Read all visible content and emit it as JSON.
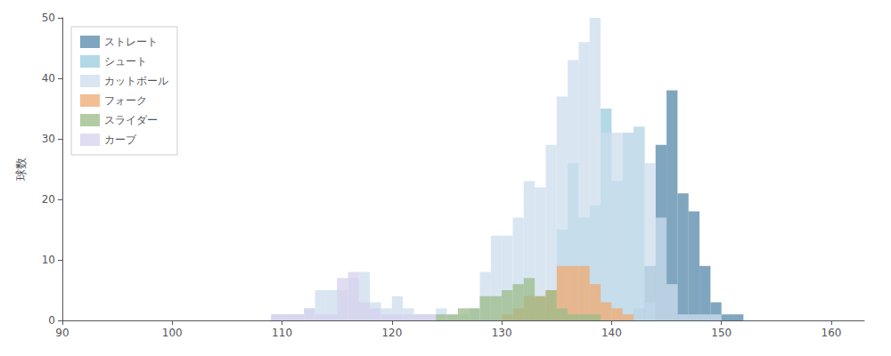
{
  "chart_data": {
    "type": "histogram",
    "ylabel": "球数",
    "bins": [
      90,
      91,
      92,
      93,
      94,
      95,
      96,
      97,
      98,
      99,
      100,
      101,
      102,
      103,
      104,
      105,
      106,
      107,
      108,
      109,
      110,
      111,
      112,
      113,
      114,
      115,
      116,
      117,
      118,
      119,
      120,
      121,
      122,
      123,
      124,
      125,
      126,
      127,
      128,
      129,
      130,
      131,
      132,
      133,
      134,
      135,
      136,
      137,
      138,
      139,
      140,
      141,
      142,
      143,
      144,
      145,
      146,
      147,
      148,
      149,
      150,
      151,
      152,
      153,
      154,
      155,
      156,
      157,
      158,
      159,
      160,
      161,
      162,
      163
    ],
    "series": [
      {
        "name": "ストレート",
        "color": "#5588aa",
        "values": [
          0,
          0,
          0,
          0,
          0,
          0,
          0,
          0,
          0,
          0,
          0,
          0,
          0,
          0,
          0,
          0,
          0,
          0,
          0,
          0,
          0,
          0,
          0,
          0,
          0,
          0,
          0,
          0,
          0,
          0,
          0,
          0,
          0,
          0,
          0,
          0,
          0,
          0,
          0,
          0,
          0,
          0,
          0,
          0,
          0,
          0,
          0,
          0,
          0,
          0,
          0,
          0,
          2,
          9,
          29,
          38,
          21,
          18,
          9,
          3,
          1,
          1,
          0,
          0,
          0,
          0,
          0,
          0,
          0,
          0,
          0,
          0,
          0
        ]
      },
      {
        "name": "シュート",
        "color": "#99ccdd",
        "values": [
          0,
          0,
          0,
          0,
          0,
          0,
          0,
          0,
          0,
          0,
          0,
          0,
          0,
          0,
          0,
          0,
          0,
          0,
          0,
          0,
          0,
          0,
          0,
          0,
          0,
          0,
          0,
          0,
          0,
          0,
          0,
          0,
          0,
          0,
          0,
          0,
          0,
          0,
          0,
          0,
          0,
          0,
          0,
          0,
          2,
          15,
          26,
          17,
          19,
          35,
          23,
          31,
          32,
          3,
          0,
          0,
          0,
          0,
          0,
          0,
          0,
          0,
          0,
          0,
          0,
          0,
          0,
          0,
          0,
          0,
          0,
          0,
          0
        ]
      },
      {
        "name": "カットボール",
        "color": "#ccdded",
        "values": [
          0,
          0,
          0,
          0,
          0,
          0,
          0,
          0,
          0,
          0,
          0,
          0,
          0,
          0,
          0,
          0,
          0,
          0,
          0,
          1,
          1,
          1,
          2,
          5,
          5,
          5,
          7,
          8,
          3,
          2,
          4,
          2,
          1,
          1,
          2,
          1,
          1,
          2,
          8,
          14,
          14,
          17,
          23,
          22,
          29,
          37,
          43,
          46,
          50,
          31,
          31,
          31,
          32,
          26,
          17,
          6,
          1,
          1,
          1,
          1,
          0,
          0,
          0,
          0,
          0,
          0,
          0,
          0,
          0,
          0,
          0,
          0,
          0
        ]
      },
      {
        "name": "フォーク",
        "color": "#f0a870",
        "values": [
          0,
          0,
          0,
          0,
          0,
          0,
          0,
          0,
          0,
          0,
          0,
          0,
          0,
          0,
          0,
          0,
          0,
          0,
          0,
          0,
          0,
          0,
          0,
          0,
          0,
          0,
          0,
          0,
          0,
          0,
          0,
          0,
          0,
          0,
          0,
          0,
          0,
          0,
          0,
          0,
          1,
          2,
          4,
          4,
          5,
          9,
          9,
          9,
          6,
          3,
          2,
          1,
          0,
          0,
          0,
          0,
          0,
          0,
          0,
          0,
          0,
          0,
          0,
          0,
          0,
          0,
          0,
          0,
          0,
          0,
          0,
          0,
          0
        ]
      },
      {
        "name": "スライダー",
        "color": "#99bb88",
        "values": [
          0,
          0,
          0,
          0,
          0,
          0,
          0,
          0,
          0,
          0,
          0,
          0,
          0,
          0,
          0,
          0,
          0,
          0,
          0,
          0,
          0,
          0,
          0,
          0,
          0,
          0,
          0,
          0,
          0,
          0,
          0,
          0,
          0,
          0,
          1,
          1,
          2,
          2,
          4,
          4,
          5,
          6,
          7,
          4,
          5,
          2,
          1,
          1,
          1,
          0,
          0,
          0,
          0,
          0,
          0,
          0,
          0,
          0,
          0,
          0,
          0,
          0,
          0,
          0,
          0,
          0,
          0,
          0,
          0,
          0,
          0,
          0,
          0
        ]
      },
      {
        "name": "カーブ",
        "color": "#d5d0ee",
        "values": [
          0,
          0,
          0,
          0,
          0,
          0,
          0,
          0,
          0,
          0,
          0,
          0,
          0,
          0,
          0,
          0,
          0,
          0,
          0,
          1,
          1,
          1,
          2,
          1,
          1,
          7,
          8,
          3,
          2,
          1,
          1,
          1,
          1,
          1,
          0,
          0,
          0,
          0,
          0,
          0,
          0,
          0,
          0,
          0,
          0,
          0,
          0,
          0,
          0,
          0,
          0,
          0,
          0,
          0,
          0,
          0,
          0,
          0,
          0,
          0,
          0,
          0,
          0,
          0,
          0,
          0,
          0,
          0,
          0,
          0,
          0,
          0,
          0
        ]
      }
    ],
    "xlim": [
      90,
      163
    ],
    "xticks": [
      90,
      100,
      110,
      120,
      130,
      140,
      150,
      160
    ],
    "ylim": [
      0,
      50
    ],
    "yticks": [
      0,
      10,
      20,
      30,
      40,
      50
    ],
    "grid": false,
    "legend": "upper left"
  }
}
